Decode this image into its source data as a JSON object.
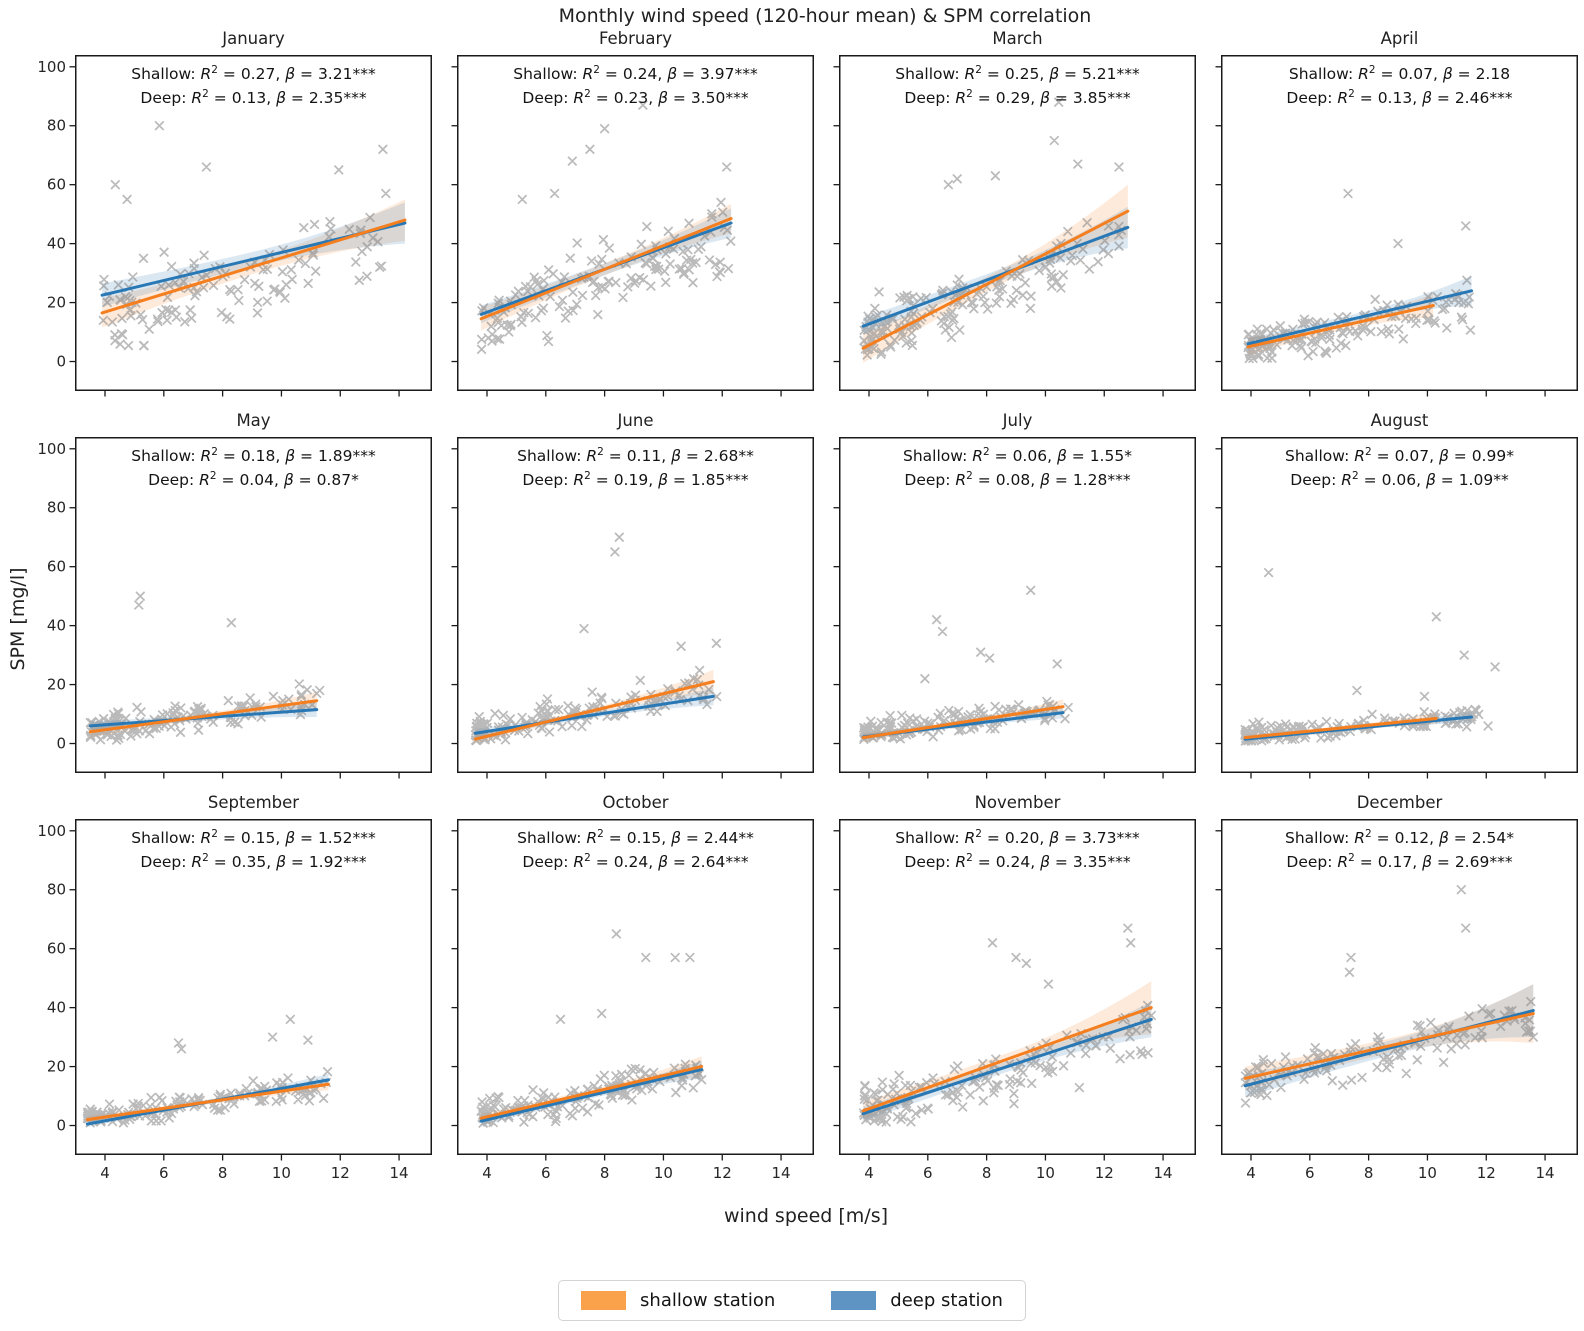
{
  "title": "Monthly wind speed (120-hour mean) & SPM correlation",
  "xlabel": "wind speed [m/s]",
  "ylabel": "SPM [mg/l]",
  "legend": {
    "shallow": {
      "label": "shallow station",
      "color": "#FAA24B"
    },
    "deep": {
      "label": "deep station",
      "color": "#5E94C3"
    }
  },
  "annotation": {
    "shallow_prefix": "Shallow",
    "deep_prefix": "Deep",
    "r2_symbol": "R",
    "beta_symbol": "β"
  },
  "colors": {
    "shallow_line": "#F57E1E",
    "deep_line": "#2878B5",
    "shallow_band": "#F57E1E",
    "deep_band": "#4C86B8",
    "marker": "#888888",
    "spine": "#1a1a1a",
    "tick_label": "#262626"
  },
  "chart_data": {
    "type": "scatter",
    "title": "Monthly wind speed (120-hour mean) & SPM correlation",
    "xlabel": "wind speed [m/s]",
    "ylabel": "SPM [mg/l]",
    "x_ticks": [
      4,
      6,
      8,
      10,
      12,
      14
    ],
    "y_ticks": [
      0,
      20,
      40,
      60,
      80,
      100
    ],
    "x_range": [
      2.98,
      15.12
    ],
    "y_range": [
      -10,
      104
    ],
    "grid": false,
    "legend_position": "bottom",
    "marker_style": "x",
    "months": [
      {
        "name": "January",
        "shallow": {
          "r2": "0.27",
          "beta": "3.21",
          "stars": "***",
          "line": {
            "x1": 3.9,
            "y1": 16.5,
            "x2": 14.2,
            "y2": 48
          },
          "band": [
            5,
            2.5,
            7
          ]
        },
        "deep": {
          "r2": "0.13",
          "beta": "2.35",
          "stars": "***",
          "line": {
            "x1": 3.9,
            "y1": 22.5,
            "x2": 14.2,
            "y2": 47
          },
          "band": [
            4,
            2.5,
            7
          ]
        },
        "scatter": {
          "seed": 101,
          "n": 125,
          "xmin": 3.9,
          "xmax": 13.6,
          "pow": 1.25,
          "slope": 2.6,
          "intercept": 6,
          "noise": 13,
          "ycap": 67,
          "floor": 4,
          "outliers": [
            [
              5.85,
              80
            ],
            [
              13.45,
              72
            ],
            [
              11.95,
              65
            ],
            [
              7.45,
              66
            ],
            [
              4.35,
              60
            ],
            [
              13.55,
              57
            ],
            [
              4.75,
              55
            ]
          ]
        }
      },
      {
        "name": "February",
        "shallow": {
          "r2": "0.24",
          "beta": "3.97",
          "stars": "***",
          "line": {
            "x1": 3.8,
            "y1": 14.5,
            "x2": 12.3,
            "y2": 48.5
          },
          "band": [
            4,
            2,
            5
          ]
        },
        "deep": {
          "r2": "0.23",
          "beta": "3.50",
          "stars": "***",
          "line": {
            "x1": 3.8,
            "y1": 16,
            "x2": 12.3,
            "y2": 47
          },
          "band": [
            3,
            2,
            5
          ]
        },
        "scatter": {
          "seed": 102,
          "n": 140,
          "xmin": 3.8,
          "xmax": 12.3,
          "pow": 1.1,
          "slope": 3.3,
          "intercept": 2,
          "noise": 12,
          "ycap": 62,
          "floor": 2,
          "outliers": [
            [
              9.3,
              87
            ],
            [
              8.0,
              79
            ],
            [
              7.5,
              72
            ],
            [
              12.15,
              66
            ],
            [
              6.9,
              68
            ],
            [
              6.3,
              57
            ],
            [
              5.2,
              55
            ]
          ]
        }
      },
      {
        "name": "March",
        "shallow": {
          "r2": "0.25",
          "beta": "5.21",
          "stars": "***",
          "line": {
            "x1": 3.8,
            "y1": 4.5,
            "x2": 12.8,
            "y2": 51
          },
          "band": [
            5,
            2.5,
            9
          ]
        },
        "deep": {
          "r2": "0.29",
          "beta": "3.85",
          "stars": "***",
          "line": {
            "x1": 3.8,
            "y1": 12,
            "x2": 12.8,
            "y2": 45.5
          },
          "band": [
            3,
            2,
            7
          ]
        },
        "scatter": {
          "seed": 103,
          "n": 165,
          "xmin": 3.8,
          "xmax": 12.6,
          "pow": 1.35,
          "slope": 3.6,
          "intercept": -5,
          "noise": 10,
          "ycap": 63,
          "floor": 2,
          "outliers": [
            [
              10.45,
              88
            ],
            [
              10.3,
              75
            ],
            [
              11.1,
              67
            ],
            [
              12.5,
              66
            ],
            [
              8.3,
              63
            ],
            [
              7.0,
              62
            ],
            [
              6.7,
              60
            ]
          ]
        }
      },
      {
        "name": "April",
        "shallow": {
          "r2": "0.07",
          "beta": "2.18",
          "stars": "",
          "line": {
            "x1": 3.9,
            "y1": 5,
            "x2": 10.2,
            "y2": 19
          },
          "band": [
            3,
            1.5,
            4
          ]
        },
        "deep": {
          "r2": "0.13",
          "beta": "2.46",
          "stars": "***",
          "line": {
            "x1": 3.9,
            "y1": 6,
            "x2": 11.5,
            "y2": 24
          },
          "band": [
            2,
            1.5,
            5
          ]
        },
        "scatter": {
          "seed": 104,
          "n": 150,
          "xmin": 3.9,
          "xmax": 11.5,
          "pow": 1.5,
          "slope": 1.9,
          "intercept": -2,
          "noise": 7,
          "ycap": 37,
          "floor": 1,
          "outliers": [
            [
              7.3,
              57
            ],
            [
              11.3,
              46
            ],
            [
              9.0,
              40
            ]
          ]
        }
      },
      {
        "name": "May",
        "shallow": {
          "r2": "0.18",
          "beta": "1.89",
          "stars": "***",
          "line": {
            "x1": 3.5,
            "y1": 4,
            "x2": 11.2,
            "y2": 14.5
          },
          "band": [
            2,
            1,
            3
          ]
        },
        "deep": {
          "r2": "0.04",
          "beta": "0.87",
          "stars": "*",
          "line": {
            "x1": 3.5,
            "y1": 6,
            "x2": 11.2,
            "y2": 11.5
          },
          "band": [
            1.5,
            1,
            2.5
          ]
        },
        "scatter": {
          "seed": 105,
          "n": 140,
          "xmin": 3.5,
          "xmax": 11.3,
          "pow": 1.6,
          "slope": 1.2,
          "intercept": 0.5,
          "noise": 4.5,
          "ycap": 27,
          "floor": 1,
          "outliers": [
            [
              5.2,
              50
            ],
            [
              5.15,
              47
            ],
            [
              8.3,
              41
            ],
            [
              11.3,
              18
            ],
            [
              11.2,
              17
            ]
          ]
        }
      },
      {
        "name": "June",
        "shallow": {
          "r2": "0.11",
          "beta": "2.68",
          "stars": "**",
          "line": {
            "x1": 3.6,
            "y1": 1.5,
            "x2": 11.7,
            "y2": 21
          },
          "band": [
            1.5,
            1,
            4
          ]
        },
        "deep": {
          "r2": "0.19",
          "beta": "1.85",
          "stars": "***",
          "line": {
            "x1": 3.6,
            "y1": 3.5,
            "x2": 11.7,
            "y2": 16
          },
          "band": [
            1.5,
            1,
            3
          ]
        },
        "scatter": {
          "seed": 106,
          "n": 145,
          "xmin": 3.6,
          "xmax": 11.9,
          "pow": 1.5,
          "slope": 1.8,
          "intercept": -2.5,
          "noise": 5.5,
          "ycap": 32,
          "floor": 1,
          "outliers": [
            [
              8.5,
              70
            ],
            [
              8.35,
              65
            ],
            [
              11.8,
              34
            ],
            [
              10.6,
              33
            ],
            [
              7.3,
              39
            ]
          ]
        }
      },
      {
        "name": "July",
        "shallow": {
          "r2": "0.06",
          "beta": "1.55",
          "stars": "*",
          "line": {
            "x1": 3.8,
            "y1": 2,
            "x2": 10.6,
            "y2": 12.5
          },
          "band": [
            1.5,
            0.8,
            2.5
          ]
        },
        "deep": {
          "r2": "0.08",
          "beta": "1.28",
          "stars": "***",
          "line": {
            "x1": 3.8,
            "y1": 2.2,
            "x2": 10.6,
            "y2": 10.5
          },
          "band": [
            1,
            0.8,
            2
          ]
        },
        "scatter": {
          "seed": 107,
          "n": 145,
          "xmin": 3.8,
          "xmax": 10.8,
          "pow": 1.6,
          "slope": 1.1,
          "intercept": -0.5,
          "noise": 4,
          "ycap": 24,
          "floor": 1,
          "outliers": [
            [
              9.5,
              52
            ],
            [
              6.3,
              42
            ],
            [
              6.5,
              38
            ],
            [
              7.8,
              31
            ],
            [
              8.1,
              29
            ],
            [
              10.4,
              27
            ],
            [
              5.9,
              22
            ]
          ]
        }
      },
      {
        "name": "August",
        "shallow": {
          "r2": "0.07",
          "beta": "0.99",
          "stars": "*",
          "line": {
            "x1": 3.8,
            "y1": 2,
            "x2": 10.3,
            "y2": 8.5
          },
          "band": [
            1,
            0.6,
            2
          ]
        },
        "deep": {
          "r2": "0.06",
          "beta": "1.09",
          "stars": "**",
          "line": {
            "x1": 3.8,
            "y1": 1.5,
            "x2": 11.5,
            "y2": 9
          },
          "band": [
            1,
            0.6,
            2
          ]
        },
        "scatter": {
          "seed": 108,
          "n": 150,
          "xmin": 3.8,
          "xmax": 12.3,
          "pow": 1.7,
          "slope": 0.85,
          "intercept": -0.5,
          "noise": 3.2,
          "ycap": 17,
          "floor": 0.8,
          "outliers": [
            [
              4.6,
              58
            ],
            [
              10.3,
              43
            ],
            [
              11.25,
              30
            ],
            [
              12.3,
              26
            ],
            [
              7.6,
              18
            ],
            [
              9.9,
              16
            ]
          ]
        }
      },
      {
        "name": "September",
        "shallow": {
          "r2": "0.15",
          "beta": "1.52",
          "stars": "***",
          "line": {
            "x1": 3.4,
            "y1": 2,
            "x2": 11.6,
            "y2": 14
          },
          "band": [
            1.2,
            0.8,
            2
          ]
        },
        "deep": {
          "r2": "0.35",
          "beta": "1.92",
          "stars": "***",
          "line": {
            "x1": 3.4,
            "y1": 0.5,
            "x2": 11.6,
            "y2": 15.5
          },
          "band": [
            1,
            0.7,
            2
          ]
        },
        "scatter": {
          "seed": 109,
          "n": 150,
          "xmin": 3.4,
          "xmax": 11.6,
          "pow": 1.5,
          "slope": 1.4,
          "intercept": -2.5,
          "noise": 4.5,
          "ycap": 29,
          "floor": 0.8,
          "outliers": [
            [
              10.3,
              36
            ],
            [
              6.5,
              28
            ],
            [
              6.6,
              26
            ],
            [
              9.7,
              30
            ],
            [
              10.9,
              29
            ]
          ]
        }
      },
      {
        "name": "October",
        "shallow": {
          "r2": "0.15",
          "beta": "2.44",
          "stars": "**",
          "line": {
            "x1": 3.8,
            "y1": 2.5,
            "x2": 11.3,
            "y2": 20
          },
          "band": [
            1.5,
            1,
            3.5
          ]
        },
        "deep": {
          "r2": "0.24",
          "beta": "2.64",
          "stars": "***",
          "line": {
            "x1": 3.8,
            "y1": 1.5,
            "x2": 11.3,
            "y2": 19
          },
          "band": [
            1.5,
            1,
            3
          ]
        },
        "scatter": {
          "seed": 110,
          "n": 155,
          "xmin": 3.8,
          "xmax": 11.3,
          "pow": 1.4,
          "slope": 1.9,
          "intercept": -4,
          "noise": 5.5,
          "ycap": 41,
          "floor": 0.8,
          "outliers": [
            [
              8.4,
              65
            ],
            [
              9.4,
              57
            ],
            [
              10.4,
              57
            ],
            [
              10.9,
              57
            ],
            [
              6.5,
              36
            ],
            [
              7.9,
              38
            ]
          ]
        }
      },
      {
        "name": "November",
        "shallow": {
          "r2": "0.20",
          "beta": "3.73",
          "stars": "***",
          "line": {
            "x1": 3.8,
            "y1": 5,
            "x2": 13.6,
            "y2": 40
          },
          "band": [
            3,
            2,
            9
          ]
        },
        "deep": {
          "r2": "0.24",
          "beta": "3.35",
          "stars": "***",
          "line": {
            "x1": 3.8,
            "y1": 4,
            "x2": 13.6,
            "y2": 36
          },
          "band": [
            2.5,
            1.8,
            6
          ]
        },
        "scatter": {
          "seed": 111,
          "n": 155,
          "xmin": 3.8,
          "xmax": 13.6,
          "pow": 1.35,
          "slope": 2.8,
          "intercept": -6,
          "noise": 8.5,
          "ycap": 53,
          "floor": 1,
          "outliers": [
            [
              12.8,
              67
            ],
            [
              12.9,
              62
            ],
            [
              8.2,
              62
            ],
            [
              9.0,
              57
            ],
            [
              9.35,
              55
            ],
            [
              10.1,
              48
            ]
          ]
        }
      },
      {
        "name": "December",
        "shallow": {
          "r2": "0.12",
          "beta": "2.54",
          "stars": "*",
          "line": {
            "x1": 3.8,
            "y1": 16,
            "x2": 13.6,
            "y2": 38
          },
          "band": [
            4,
            2.5,
            10
          ]
        },
        "deep": {
          "r2": "0.17",
          "beta": "2.69",
          "stars": "***",
          "line": {
            "x1": 3.8,
            "y1": 13.5,
            "x2": 13.6,
            "y2": 39
          },
          "band": [
            4,
            2.5,
            9
          ]
        },
        "scatter": {
          "seed": 112,
          "n": 125,
          "xmin": 3.8,
          "xmax": 13.6,
          "pow": 1.3,
          "slope": 2.2,
          "intercept": 6,
          "noise": 8,
          "ycap": 48,
          "floor": 4,
          "outliers": [
            [
              11.15,
              80
            ],
            [
              11.3,
              67
            ],
            [
              7.4,
              57
            ],
            [
              7.35,
              52
            ],
            [
              13.5,
              32
            ],
            [
              13.6,
              30
            ]
          ]
        }
      }
    ]
  }
}
